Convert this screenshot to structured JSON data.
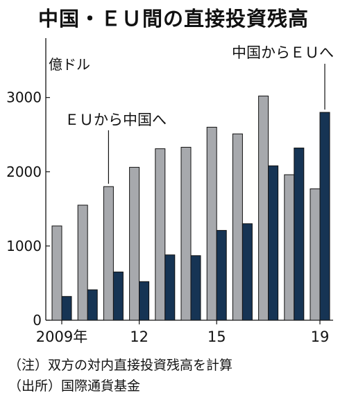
{
  "chart_data": {
    "type": "bar",
    "title": "中国・ＥＵ間の直接投資残高",
    "ylabel": "億ドル",
    "categories": [
      "2009",
      "2010",
      "2011",
      "2012",
      "2013",
      "2014",
      "2015",
      "2016",
      "2017",
      "2018",
      "2019"
    ],
    "x_tick_labels": [
      "2009年",
      "",
      "",
      "12",
      "",
      "",
      "15",
      "",
      "",
      "",
      "19"
    ],
    "series": [
      {
        "name": "ＥＵから中国へ",
        "color": "#a7a9ad",
        "values": [
          1270,
          1550,
          1800,
          2060,
          2310,
          2330,
          2600,
          2510,
          3020,
          1960,
          1770
        ]
      },
      {
        "name": "中国からＥＵへ",
        "color": "#163454",
        "values": [
          320,
          410,
          650,
          520,
          880,
          870,
          1210,
          1300,
          2080,
          2320,
          2800
        ]
      }
    ],
    "ylim": [
      0,
      3800
    ],
    "yticks": [
      0,
      1000,
      2000,
      3000
    ],
    "ytick_labels": [
      "0",
      "1000",
      "2000",
      "3000"
    ],
    "grid": false,
    "legend": "callout labels"
  },
  "notes": {
    "note1": "（注）双方の対内直接投資残高を計算",
    "note2": "（出所）国際通貨基金"
  }
}
